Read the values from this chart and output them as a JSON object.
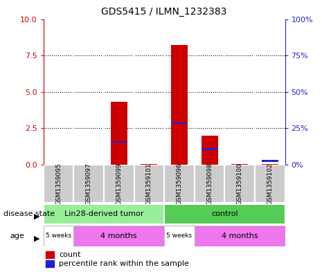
{
  "title": "GDS5415 / ILMN_1232383",
  "samples": [
    "GSM1359095",
    "GSM1359097",
    "GSM1359099",
    "GSM1359101",
    "GSM1359096",
    "GSM1359098",
    "GSM1359100",
    "GSM1359102"
  ],
  "count_values": [
    0.0,
    0.0,
    4.3,
    0.05,
    8.2,
    2.0,
    0.05,
    0.05
  ],
  "percentile_values": [
    0.0,
    0.0,
    1.55,
    0.0,
    2.85,
    1.05,
    0.0,
    0.25
  ],
  "ylim_left": [
    0,
    10
  ],
  "ylim_right": [
    0,
    100
  ],
  "yticks_left": [
    0,
    2.5,
    5,
    7.5,
    10
  ],
  "yticks_right": [
    0,
    25,
    50,
    75,
    100
  ],
  "count_color": "#cc0000",
  "percentile_color": "#2222cc",
  "bg_color": "#ffffff",
  "sample_bg": "#cccccc",
  "plot_bg": "#ffffff",
  "disease_state_groups": [
    {
      "label": "Lin28-derived tumor",
      "start": 0,
      "end": 4,
      "color": "#99ee99"
    },
    {
      "label": "control",
      "start": 4,
      "end": 8,
      "color": "#55cc55"
    }
  ],
  "age_groups": [
    {
      "label": "5 weeks",
      "start": 0,
      "end": 1,
      "color": "#ffffff"
    },
    {
      "label": "4 months",
      "start": 1,
      "end": 4,
      "color": "#ee77ee"
    },
    {
      "label": "5 weeks",
      "start": 4,
      "end": 5,
      "color": "#ffffff"
    },
    {
      "label": "4 months",
      "start": 5,
      "end": 8,
      "color": "#ee77ee"
    }
  ],
  "legend_count_label": "count",
  "legend_percentile_label": "percentile rank within the sample",
  "disease_state_label": "disease state",
  "age_label": "age",
  "left_axis_color": "#cc0000",
  "right_axis_color": "#2222cc",
  "bar_width": 0.55
}
